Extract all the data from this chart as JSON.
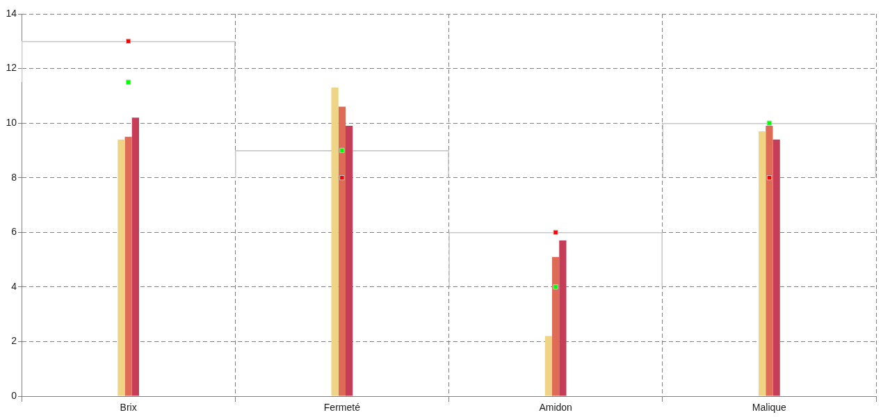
{
  "chart_data": {
    "type": "bar",
    "categories": [
      "Brix",
      "Fermeté",
      "Amidon",
      "Malique"
    ],
    "series": [
      {
        "type": "bar",
        "color": "#c8c8c8",
        "base": [
          11.5,
          8,
          4,
          8
        ],
        "values": [
          1.5,
          1,
          2,
          2
        ]
      },
      {
        "color": "#eed484",
        "values": [
          9.4,
          11.3,
          2.2,
          9.7
        ]
      },
      {
        "color": "#dd6b56",
        "values": [
          9.5,
          10.6,
          5.1,
          9.9
        ]
      },
      {
        "color": "#c63d58",
        "values": [
          10.2,
          9.9,
          5.7,
          9.4
        ]
      },
      {
        "type": "scatter",
        "color": "#ff0000",
        "marker": "square",
        "x": [
          "Brix",
          "Fermeté",
          "Amidon",
          "Malique"
        ],
        "values": [
          13,
          8,
          6,
          8
        ]
      },
      {
        "type": "scatter",
        "color": "#00ff00",
        "marker": "square",
        "x": [
          "Brix",
          "Fermeté",
          "Amidon",
          "Malique"
        ],
        "values": [
          11.5,
          9,
          4,
          10
        ]
      }
    ],
    "ylim": [
      0,
      14
    ],
    "yticks": [
      0,
      2,
      4,
      6,
      8,
      10,
      12,
      14
    ],
    "grid": true
  }
}
